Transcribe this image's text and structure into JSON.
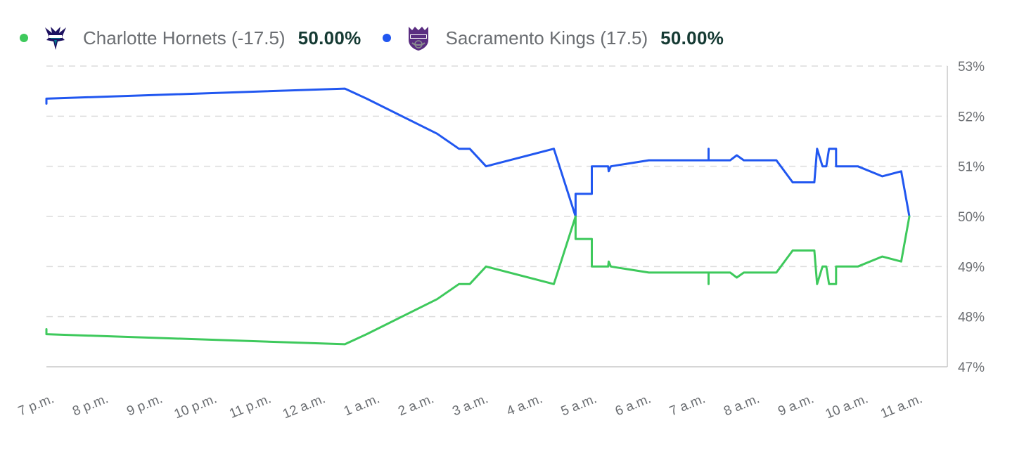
{
  "legend": {
    "items": [
      {
        "name": "Charlotte Hornets (-17.5)",
        "pct": "50.00%",
        "color": "#3ec95c",
        "logo": "hornets-logo"
      },
      {
        "name": "Sacramento Kings (17.5)",
        "pct": "50.00%",
        "color": "#2157f0",
        "logo": "kings-logo"
      }
    ]
  },
  "chart_data": {
    "type": "line",
    "x_unit": "hours after 7 p.m.",
    "xlim": [
      0,
      16.6
    ],
    "ylim": [
      47,
      53
    ],
    "y_ticks": [
      47,
      48,
      49,
      50,
      51,
      52,
      53
    ],
    "y_tick_labels": [
      "47%",
      "48%",
      "49%",
      "50%",
      "51%",
      "52%",
      "53%"
    ],
    "x_ticks": [
      0,
      1,
      2,
      3,
      4,
      5,
      6,
      7,
      8,
      9,
      10,
      11,
      12,
      13,
      14,
      15,
      16
    ],
    "x_tick_labels": [
      "7 p.m.",
      "8 p.m.",
      "9 p.m.",
      "10 p.m.",
      "11 p.m.",
      "12 a.m.",
      "1 a.m.",
      "2 a.m.",
      "3 a.m.",
      "4 a.m.",
      "5 a.m.",
      "6 a.m.",
      "7 a.m.",
      "8 a.m.",
      "9 a.m.",
      "10 a.m.",
      "11 a.m."
    ],
    "grid": "horizontal dashed",
    "legend_position": "top-left",
    "series": [
      {
        "name": "Sacramento Kings (17.5)",
        "color": "#2157f0",
        "points": [
          [
            0,
            52.25
          ],
          [
            0,
            52.35
          ],
          [
            5.5,
            52.55
          ],
          [
            5.9,
            52.35
          ],
          [
            7.2,
            51.65
          ],
          [
            7.6,
            51.35
          ],
          [
            7.8,
            51.35
          ],
          [
            8.1,
            51.0
          ],
          [
            9.35,
            51.35
          ],
          [
            9.75,
            50.0
          ],
          [
            9.75,
            50.45
          ],
          [
            10.05,
            50.45
          ],
          [
            10.05,
            51.0
          ],
          [
            10.35,
            51.0
          ],
          [
            10.36,
            50.9
          ],
          [
            10.4,
            51.0
          ],
          [
            11.1,
            51.12
          ],
          [
            12.2,
            51.12
          ],
          [
            12.2,
            51.35
          ],
          [
            12.2,
            51.12
          ],
          [
            12.6,
            51.12
          ],
          [
            12.72,
            51.22
          ],
          [
            12.85,
            51.12
          ],
          [
            13.45,
            51.12
          ],
          [
            13.75,
            50.68
          ],
          [
            14.15,
            50.68
          ],
          [
            14.2,
            51.35
          ],
          [
            14.3,
            51.0
          ],
          [
            14.37,
            51.0
          ],
          [
            14.42,
            51.35
          ],
          [
            14.55,
            51.35
          ],
          [
            14.55,
            51.0
          ],
          [
            14.95,
            51.0
          ],
          [
            15.4,
            50.8
          ],
          [
            15.75,
            50.9
          ],
          [
            15.9,
            50.0
          ]
        ]
      },
      {
        "name": "Charlotte Hornets (-17.5)",
        "color": "#3ec95c",
        "points": [
          [
            0,
            47.75
          ],
          [
            0,
            47.65
          ],
          [
            5.5,
            47.45
          ],
          [
            5.9,
            47.65
          ],
          [
            7.2,
            48.35
          ],
          [
            7.6,
            48.65
          ],
          [
            7.8,
            48.65
          ],
          [
            8.1,
            49.0
          ],
          [
            9.35,
            48.65
          ],
          [
            9.75,
            50.0
          ],
          [
            9.75,
            49.55
          ],
          [
            10.05,
            49.55
          ],
          [
            10.05,
            49.0
          ],
          [
            10.35,
            49.0
          ],
          [
            10.36,
            49.1
          ],
          [
            10.4,
            49.0
          ],
          [
            11.1,
            48.88
          ],
          [
            12.2,
            48.88
          ],
          [
            12.2,
            48.65
          ],
          [
            12.2,
            48.88
          ],
          [
            12.6,
            48.88
          ],
          [
            12.72,
            48.78
          ],
          [
            12.85,
            48.88
          ],
          [
            13.45,
            48.88
          ],
          [
            13.75,
            49.32
          ],
          [
            14.15,
            49.32
          ],
          [
            14.2,
            48.65
          ],
          [
            14.3,
            49.0
          ],
          [
            14.37,
            49.0
          ],
          [
            14.42,
            48.65
          ],
          [
            14.55,
            48.65
          ],
          [
            14.55,
            49.0
          ],
          [
            14.95,
            49.0
          ],
          [
            15.4,
            49.2
          ],
          [
            15.75,
            49.1
          ],
          [
            15.9,
            50.0
          ]
        ]
      }
    ]
  }
}
